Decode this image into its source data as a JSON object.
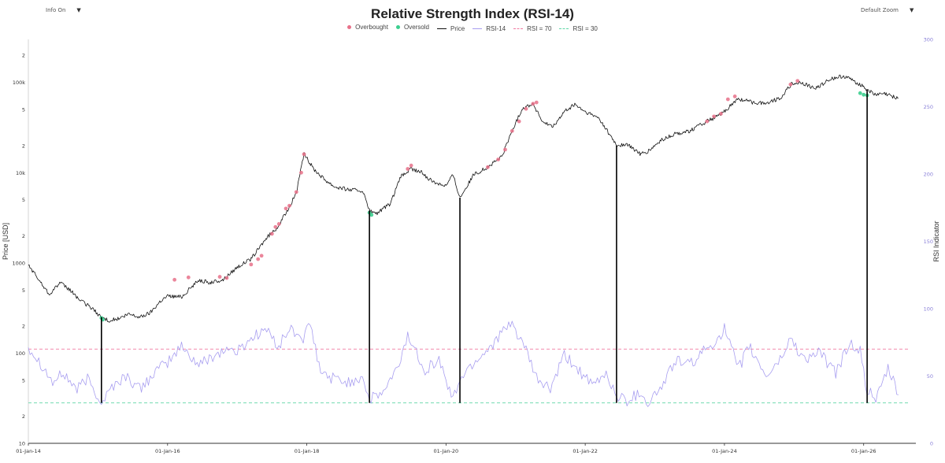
{
  "controls": {
    "info_label": "Info On",
    "zoom_label": "Default Zoom",
    "dropdown_glyph": "▼"
  },
  "colors": {
    "overbought": "#e8718a",
    "oversold": "#3ccf8f",
    "price": "#111111",
    "rsi": "#a89ef0",
    "rsi70": "#f07aa0",
    "rsi30": "#5fd6a6",
    "marker": "#000000"
  },
  "legend": [
    {
      "label": "Overbought",
      "kind": "dot",
      "color": "#e8718a"
    },
    {
      "label": "Oversold",
      "kind": "dot",
      "color": "#3ccf8f"
    },
    {
      "label": "Price",
      "kind": "line",
      "color": "#111111",
      "style": "solid"
    },
    {
      "label": "RSI-14",
      "kind": "line",
      "color": "#a89ef0",
      "style": "solid"
    },
    {
      "label": "RSI = 70",
      "kind": "line",
      "color": "#f07aa0",
      "style": "dashed"
    },
    {
      "label": "RSI = 30",
      "kind": "line",
      "color": "#5fd6a6",
      "style": "dashed"
    }
  ],
  "chart_data": {
    "type": "line",
    "title": "Relative Strength Index (RSI-14)",
    "ylabel": "Price [USD]",
    "y2label": "RSI Indicator",
    "y_scale": "log",
    "ylim": [
      10,
      300000
    ],
    "y2lim": [
      0,
      300
    ],
    "x_ticks": [
      "01-Jan-14",
      "01-Jan-16",
      "01-Jan-18",
      "01-Jan-20",
      "01-Jan-22",
      "01-Jan-24",
      "01-Jan-26"
    ],
    "y_ticks": [
      {
        "v": 10,
        "l": "10"
      },
      {
        "v": 20,
        "l": "2"
      },
      {
        "v": 50,
        "l": "5"
      },
      {
        "v": 100,
        "l": "100"
      },
      {
        "v": 200,
        "l": "2"
      },
      {
        "v": 500,
        "l": "5"
      },
      {
        "v": 1000,
        "l": "1000"
      },
      {
        "v": 2000,
        "l": "2"
      },
      {
        "v": 5000,
        "l": "5"
      },
      {
        "v": 10000,
        "l": "10k"
      },
      {
        "v": 20000,
        "l": "2"
      },
      {
        "v": 50000,
        "l": "5"
      },
      {
        "v": 100000,
        "l": "100k"
      },
      {
        "v": 200000,
        "l": "2"
      }
    ],
    "y2_ticks": [
      0,
      50,
      100,
      150,
      200,
      250,
      300
    ],
    "thresholds": {
      "overbought": 70,
      "oversold": 30
    },
    "series": [
      {
        "name": "Price",
        "x": [
          2014.0,
          2014.15,
          2014.3,
          2014.45,
          2014.6,
          2014.75,
          2014.9,
          2015.05,
          2015.15,
          2015.3,
          2015.45,
          2015.6,
          2015.75,
          2015.9,
          2016.0,
          2016.2,
          2016.45,
          2016.6,
          2016.8,
          2017.0,
          2017.2,
          2017.4,
          2017.6,
          2017.75,
          2017.85,
          2017.96,
          2018.1,
          2018.25,
          2018.4,
          2018.6,
          2018.8,
          2018.9,
          2019.0,
          2019.2,
          2019.35,
          2019.5,
          2019.65,
          2019.8,
          2020.0,
          2020.1,
          2020.2,
          2020.4,
          2020.6,
          2020.8,
          2020.95,
          2021.1,
          2021.25,
          2021.4,
          2021.55,
          2021.7,
          2021.85,
          2022.0,
          2022.2,
          2022.45,
          2022.6,
          2022.8,
          2022.9,
          2023.1,
          2023.3,
          2023.5,
          2023.75,
          2023.95,
          2024.2,
          2024.4,
          2024.6,
          2024.8,
          2024.96,
          2025.1,
          2025.3,
          2025.5,
          2025.7,
          2025.85,
          2026.0,
          2026.15,
          2026.3,
          2026.5
        ],
        "values": [
          950,
          650,
          450,
          600,
          500,
          380,
          320,
          250,
          230,
          240,
          270,
          250,
          280,
          380,
          430,
          420,
          650,
          600,
          650,
          900,
          1100,
          1800,
          2600,
          4200,
          6000,
          16000,
          11000,
          8500,
          7000,
          6500,
          6300,
          3800,
          3500,
          4500,
          9000,
          11000,
          10000,
          8000,
          7200,
          9500,
          5300,
          9500,
          11500,
          15000,
          29000,
          52000,
          58000,
          35000,
          33000,
          47000,
          57000,
          47000,
          40000,
          20000,
          20500,
          16000,
          17000,
          23000,
          27000,
          29000,
          37000,
          44000,
          66000,
          60000,
          59000,
          67000,
          95000,
          100000,
          85000,
          107000,
          118000,
          105000,
          90000,
          73000,
          75000,
          67000
        ]
      },
      {
        "name": "RSI-14",
        "x": [
          2014.0,
          2014.2,
          2014.35,
          2014.5,
          2014.7,
          2014.85,
          2015.0,
          2015.05,
          2015.2,
          2015.4,
          2015.6,
          2015.8,
          2016.0,
          2016.2,
          2016.45,
          2016.65,
          2016.85,
          2017.0,
          2017.2,
          2017.4,
          2017.6,
          2017.75,
          2017.95,
          2018.05,
          2018.2,
          2018.4,
          2018.6,
          2018.8,
          2018.9,
          2019.1,
          2019.3,
          2019.45,
          2019.7,
          2019.9,
          2020.1,
          2020.2,
          2020.4,
          2020.6,
          2020.8,
          2020.95,
          2021.1,
          2021.3,
          2021.5,
          2021.7,
          2021.9,
          2022.1,
          2022.3,
          2022.45,
          2022.6,
          2022.8,
          2022.9,
          2023.1,
          2023.3,
          2023.5,
          2023.7,
          2023.85,
          2024.0,
          2024.2,
          2024.35,
          2024.6,
          2024.8,
          2024.95,
          2025.15,
          2025.35,
          2025.6,
          2025.8,
          2025.95,
          2026.05,
          2026.2,
          2026.35,
          2026.5
        ],
        "values": [
          72,
          58,
          45,
          52,
          40,
          48,
          35,
          30,
          42,
          50,
          40,
          52,
          60,
          72,
          58,
          65,
          70,
          68,
          78,
          85,
          72,
          85,
          78,
          88,
          52,
          48,
          45,
          50,
          32,
          38,
          55,
          80,
          55,
          62,
          32,
          48,
          60,
          70,
          82,
          88,
          75,
          48,
          40,
          65,
          55,
          42,
          52,
          35,
          32,
          38,
          30,
          42,
          62,
          58,
          68,
          75,
          85,
          55,
          72,
          50,
          62,
          78,
          62,
          68,
          52,
          75,
          68,
          38,
          34,
          55,
          36
        ]
      }
    ],
    "overbought_points": [
      [
        2016.1,
        650
      ],
      [
        2016.3,
        690
      ],
      [
        2016.75,
        700
      ],
      [
        2016.85,
        680
      ],
      [
        2017.2,
        960
      ],
      [
        2017.3,
        1100
      ],
      [
        2017.35,
        1200
      ],
      [
        2017.5,
        2100
      ],
      [
        2017.55,
        2500
      ],
      [
        2017.6,
        2700
      ],
      [
        2017.7,
        4000
      ],
      [
        2017.75,
        4300
      ],
      [
        2017.85,
        6100
      ],
      [
        2017.92,
        10000
      ],
      [
        2017.96,
        16000
      ],
      [
        2019.45,
        11000
      ],
      [
        2019.5,
        12000
      ],
      [
        2020.6,
        11500
      ],
      [
        2020.75,
        14000
      ],
      [
        2020.85,
        18000
      ],
      [
        2020.95,
        29000
      ],
      [
        2021.05,
        37000
      ],
      [
        2021.15,
        51000
      ],
      [
        2021.25,
        58000
      ],
      [
        2021.3,
        60000
      ],
      [
        2023.75,
        37000
      ],
      [
        2023.85,
        42000
      ],
      [
        2023.95,
        45000
      ],
      [
        2024.05,
        65000
      ],
      [
        2024.15,
        70000
      ],
      [
        2024.95,
        95000
      ],
      [
        2025.05,
        104000
      ]
    ],
    "oversold_points": [
      [
        2015.05,
        245
      ],
      [
        2015.07,
        235
      ],
      [
        2018.9,
        3600
      ],
      [
        2018.93,
        3400
      ],
      [
        2025.95,
        76000
      ],
      [
        2026.0,
        73000
      ],
      [
        2026.05,
        72000
      ]
    ],
    "oversold_markers_x": [
      2015.05,
      2018.9,
      2020.2,
      2022.45,
      2026.05
    ]
  }
}
